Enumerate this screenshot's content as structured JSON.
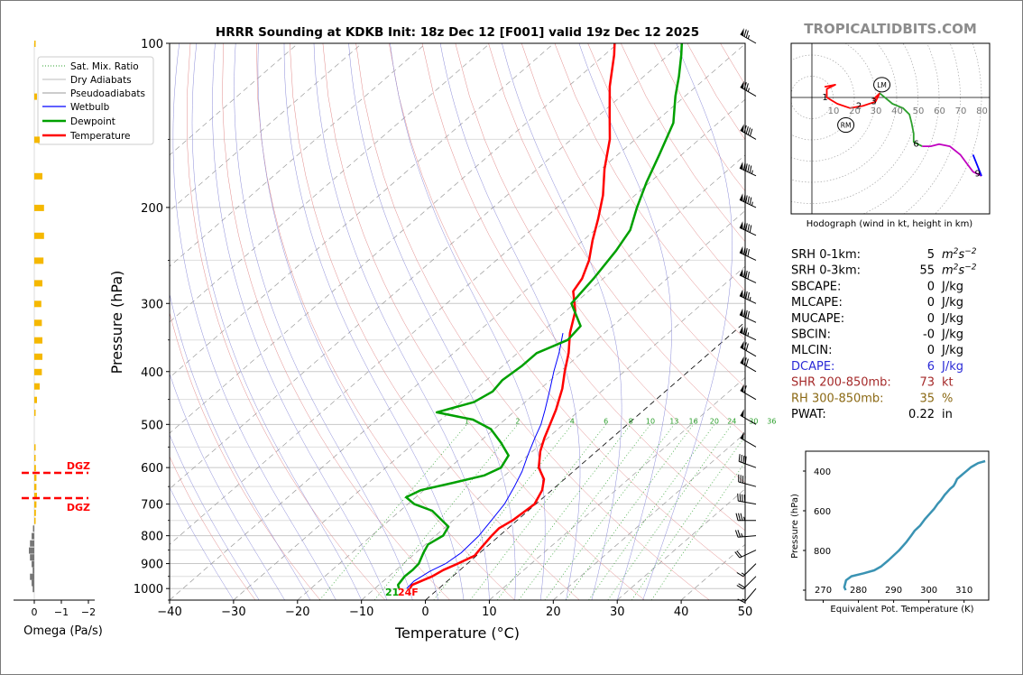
{
  "chart_data": [
    {
      "type": "line",
      "chart": "skewt-sounding",
      "title": "HRRR Sounding at KDKB Init: 18z Dec 12 [F001] valid 19z Dec 12 2025",
      "xlabel": "Temperature (°C)",
      "ylabel": "Pressure (hPa)",
      "xlim": [
        -40,
        50
      ],
      "ylim": [
        1050,
        100
      ],
      "y_scale": "log",
      "x_ticks": [
        -40,
        -30,
        -20,
        -10,
        0,
        10,
        20,
        30,
        40,
        50
      ],
      "x_tick_labels": [
        "−40",
        "−30",
        "−20",
        "−10",
        "0",
        "10",
        "20",
        "30",
        "40",
        "50"
      ],
      "y_ticks": [
        1000,
        900,
        800,
        700,
        600,
        500,
        400,
        300,
        200,
        100
      ],
      "legend": [
        "Sat. Mix. Ratio",
        "Dry Adiabats",
        "Pseudoadiabats",
        "Wetbulb",
        "Dewpoint",
        "Temperature"
      ],
      "legend_position": "upper-left",
      "mixing_ratio_labels": [
        "1",
        "2",
        "4",
        "6",
        "8",
        "10",
        "13",
        "16",
        "20",
        "24",
        "30",
        "36"
      ],
      "mixing_ratio_values": [
        1,
        2,
        4,
        6,
        8,
        10,
        13,
        16,
        20,
        24,
        30,
        36
      ],
      "surface_dewpoint_label": "21",
      "surface_temp_label": "24F",
      "series": [
        {
          "name": "Temperature",
          "color": "#ff0000",
          "points": [
            [
              -4.5,
              1000
            ],
            [
              -4.8,
              985
            ],
            [
              -3.2,
              950
            ],
            [
              -2.6,
              925
            ],
            [
              -1.5,
              900
            ],
            [
              -0.3,
              870
            ],
            [
              -0.7,
              840
            ],
            [
              -1.2,
              800
            ],
            [
              -1.4,
              775
            ],
            [
              -0.7,
              750
            ],
            [
              -0.2,
              700
            ],
            [
              -1.5,
              660
            ],
            [
              -3.2,
              630
            ],
            [
              -6.1,
              600
            ],
            [
              -8.8,
              560
            ],
            [
              -10.5,
              530
            ],
            [
              -12.1,
              500
            ],
            [
              -13.8,
              470
            ],
            [
              -16.6,
              430
            ],
            [
              -19.3,
              400
            ],
            [
              -22.0,
              370
            ],
            [
              -25.4,
              340
            ],
            [
              -28.5,
              310
            ],
            [
              -32.4,
              285
            ],
            [
              -33.3,
              270
            ],
            [
              -35.5,
              250
            ],
            [
              -38.5,
              230
            ],
            [
              -41.5,
              210
            ],
            [
              -45.0,
              190
            ],
            [
              -49.5,
              170
            ],
            [
              -54.0,
              150
            ],
            [
              -58.5,
              135
            ],
            [
              -63.5,
              120
            ],
            [
              -68.5,
              105
            ],
            [
              -70.5,
              100
            ]
          ]
        },
        {
          "name": "Wetbulb",
          "color": "#0000ff",
          "points": [
            [
              -5.0,
              1000
            ],
            [
              -5.2,
              970
            ],
            [
              -4.5,
              930
            ],
            [
              -3.4,
              900
            ],
            [
              -2.9,
              860
            ],
            [
              -3.2,
              800
            ],
            [
              -4.0,
              750
            ],
            [
              -4.9,
              700
            ],
            [
              -6.5,
              650
            ],
            [
              -8.0,
              610
            ],
            [
              -10.0,
              570
            ],
            [
              -12.0,
              530
            ],
            [
              -13.5,
              500
            ],
            [
              -15.5,
              470
            ],
            [
              -18.5,
              430
            ],
            [
              -21.0,
              400
            ],
            [
              -23.5,
              370
            ],
            [
              -26.5,
              340
            ]
          ]
        },
        {
          "name": "Dewpoint",
          "color": "#00a000",
          "points": [
            [
              -6.2,
              1000
            ],
            [
              -7.0,
              985
            ],
            [
              -7.5,
              950
            ],
            [
              -7.4,
              925
            ],
            [
              -7.6,
              900
            ],
            [
              -8.8,
              860
            ],
            [
              -9.6,
              830
            ],
            [
              -8.8,
              800
            ],
            [
              -9.6,
              770
            ],
            [
              -15.0,
              720
            ],
            [
              -19.0,
              700
            ],
            [
              -21.5,
              680
            ],
            [
              -20.5,
              660
            ],
            [
              -16.8,
              640
            ],
            [
              -13.2,
              620
            ],
            [
              -12.0,
              600
            ],
            [
              -13.0,
              570
            ],
            [
              -16.5,
              540
            ],
            [
              -20.5,
              510
            ],
            [
              -25.0,
              490
            ],
            [
              -32.0,
              475
            ],
            [
              -28.0,
              455
            ],
            [
              -27.0,
              435
            ],
            [
              -27.5,
              415
            ],
            [
              -27.0,
              390
            ],
            [
              -27.0,
              370
            ],
            [
              -24.5,
              350
            ],
            [
              -25.0,
              330
            ],
            [
              -30.5,
              300
            ],
            [
              -31.5,
              270
            ],
            [
              -33.0,
              240
            ],
            [
              -34.5,
              220
            ],
            [
              -37.5,
              200
            ],
            [
              -40.5,
              180
            ],
            [
              -43.5,
              160
            ],
            [
              -47.0,
              140
            ],
            [
              -51.5,
              125
            ],
            [
              -54.5,
              115
            ],
            [
              -58.0,
              105
            ],
            [
              -60.0,
              100
            ]
          ]
        }
      ]
    },
    {
      "type": "bar",
      "chart": "omega-profile",
      "xlabel": "Omega (Pa/s)",
      "x_ticks": [
        "0",
        "−1",
        "−2"
      ],
      "dgz_label_top": "DGZ",
      "dgz_label_bottom": "DGZ",
      "dgz_pressures": [
        615,
        685
      ],
      "bars": [
        {
          "p": 100,
          "omega": -0.02
        },
        {
          "p": 125,
          "omega": -0.05
        },
        {
          "p": 150,
          "omega": -0.1
        },
        {
          "p": 175,
          "omega": -0.15
        },
        {
          "p": 200,
          "omega": -0.18
        },
        {
          "p": 225,
          "omega": -0.18
        },
        {
          "p": 250,
          "omega": -0.17
        },
        {
          "p": 275,
          "omega": -0.15
        },
        {
          "p": 300,
          "omega": -0.13
        },
        {
          "p": 325,
          "omega": -0.14
        },
        {
          "p": 350,
          "omega": -0.15
        },
        {
          "p": 375,
          "omega": -0.15
        },
        {
          "p": 400,
          "omega": -0.14
        },
        {
          "p": 425,
          "omega": -0.1
        },
        {
          "p": 450,
          "omega": -0.05
        },
        {
          "p": 475,
          "omega": -0.02
        },
        {
          "p": 550,
          "omega": -0.02
        },
        {
          "p": 575,
          "omega": -0.02
        },
        {
          "p": 600,
          "omega": -0.03
        },
        {
          "p": 625,
          "omega": -0.04
        },
        {
          "p": 650,
          "omega": -0.04
        },
        {
          "p": 675,
          "omega": -0.05
        },
        {
          "p": 700,
          "omega": -0.04
        },
        {
          "p": 725,
          "omega": -0.03
        },
        {
          "p": 750,
          "omega": -0.02
        },
        {
          "p": 775,
          "omega": 0.02
        },
        {
          "p": 800,
          "omega": 0.05
        },
        {
          "p": 825,
          "omega": 0.08
        },
        {
          "p": 850,
          "omega": 0.1
        },
        {
          "p": 875,
          "omega": 0.08
        },
        {
          "p": 900,
          "omega": 0.05
        },
        {
          "p": 925,
          "omega": 0.03
        },
        {
          "p": 950,
          "omega": 0.08
        },
        {
          "p": 975,
          "omega": 0.05
        },
        {
          "p": 1000,
          "omega": 0.03
        }
      ]
    },
    {
      "type": "line",
      "chart": "hodograph",
      "caption": "Hodograph (wind in kt, height in km)",
      "ring_labels": [
        "10",
        "20",
        "30",
        "40",
        "50",
        "60",
        "70",
        "80"
      ],
      "ring_values": [
        10,
        20,
        30,
        40,
        50,
        60,
        70,
        80
      ],
      "height_labels": [
        "1",
        "2",
        "3",
        "6",
        "9"
      ],
      "markers": [
        "LM",
        "RM"
      ],
      "segments": [
        {
          "color": "#ff0000",
          "points": [
            [
              6,
              5
            ],
            [
              11,
              6
            ],
            [
              7,
              4
            ],
            [
              7,
              0
            ],
            [
              12,
              -3
            ],
            [
              18,
              -5
            ],
            [
              24,
              -4
            ],
            [
              30,
              -2
            ],
            [
              32,
              2
            ],
            [
              29,
              -1
            ]
          ]
        },
        {
          "color": "#2ca02c",
          "points": [
            [
              32,
              2
            ],
            [
              38,
              -3
            ],
            [
              43,
              -5
            ],
            [
              46,
              -8
            ],
            [
              47,
              -12
            ],
            [
              48,
              -17
            ],
            [
              48,
              -21
            ],
            [
              50,
              -22
            ],
            [
              52,
              -23
            ]
          ]
        },
        {
          "color": "#c000c0",
          "points": [
            [
              52,
              -23
            ],
            [
              56,
              -23
            ],
            [
              60,
              -22
            ],
            [
              65,
              -23
            ],
            [
              70,
              -27
            ],
            [
              73,
              -31
            ],
            [
              76,
              -35
            ],
            [
              80,
              -37
            ]
          ]
        },
        {
          "color": "#0000ff",
          "points": [
            [
              80,
              -37
            ],
            [
              76,
              -27
            ]
          ]
        }
      ],
      "height_points": [
        [
          7,
          0
        ],
        [
          23,
          -4
        ],
        [
          30,
          -2
        ],
        [
          50,
          -22
        ],
        [
          79,
          -36
        ]
      ],
      "lm": [
        33,
        6
      ],
      "rm": [
        16,
        -13
      ]
    },
    {
      "type": "line",
      "chart": "theta-e-profile",
      "xlabel": "Equivalent Pot. Temperature (K)",
      "ylabel": "Pressure (hPa)",
      "x_ticks": [
        270,
        280,
        290,
        300,
        310
      ],
      "y_ticks": [
        400,
        600,
        800
      ],
      "xlim": [
        265,
        317
      ],
      "ylim": [
        1050,
        300
      ],
      "points": [
        [
          276.4,
          1000
        ],
        [
          276.0,
          985
        ],
        [
          276.5,
          950
        ],
        [
          278.0,
          930
        ],
        [
          281.5,
          915
        ],
        [
          284.5,
          900
        ],
        [
          286.5,
          880
        ],
        [
          288.5,
          850
        ],
        [
          291.5,
          800
        ],
        [
          293.5,
          760
        ],
        [
          295.0,
          725
        ],
        [
          296.0,
          700
        ],
        [
          297.5,
          675
        ],
        [
          299.0,
          640
        ],
        [
          300.5,
          610
        ],
        [
          301.5,
          590
        ],
        [
          302.5,
          565
        ],
        [
          303.5,
          545
        ],
        [
          304.5,
          520
        ],
        [
          305.0,
          510
        ],
        [
          306.0,
          490
        ],
        [
          307.0,
          475
        ],
        [
          307.5,
          460
        ],
        [
          308.0,
          440
        ],
        [
          309.0,
          425
        ],
        [
          310.0,
          410
        ],
        [
          311.0,
          395
        ],
        [
          312.0,
          380
        ],
        [
          313.0,
          370
        ],
        [
          314.0,
          360
        ],
        [
          315.0,
          355
        ],
        [
          316.0,
          350
        ]
      ]
    }
  ],
  "watermark": "TROPICALTIDBITS.COM",
  "indices": [
    {
      "label": "SRH 0-1km:",
      "value": "5",
      "unit": "m2s-2",
      "color": "#000000"
    },
    {
      "label": "SRH 0-3km:",
      "value": "55",
      "unit": "m2s-2",
      "color": "#000000"
    },
    {
      "label": "SBCAPE:",
      "value": "0",
      "unit": "J/kg",
      "color": "#000000"
    },
    {
      "label": "MLCAPE:",
      "value": "0",
      "unit": "J/kg",
      "color": "#000000"
    },
    {
      "label": "MUCAPE:",
      "value": "0",
      "unit": "J/kg",
      "color": "#000000"
    },
    {
      "label": "SBCIN:",
      "value": "-0",
      "unit": "J/kg",
      "color": "#000000"
    },
    {
      "label": "MLCIN:",
      "value": "0",
      "unit": "J/kg",
      "color": "#000000"
    },
    {
      "label": "DCAPE:",
      "value": "6",
      "unit": "J/kg",
      "color": "#2a2ad6"
    },
    {
      "label": "SHR 200-850mb:",
      "value": "73",
      "unit": "kt",
      "color": "#a52a2a"
    },
    {
      "label": "RH 300-850mb:",
      "value": "35",
      "unit": "%",
      "color": "#8b6914"
    },
    {
      "label": "PWAT:",
      "value": "0.22",
      "unit": "in",
      "color": "#000000"
    }
  ],
  "wind_barbs": [
    {
      "p": 100,
      "dir": 300,
      "kt": 75
    },
    {
      "p": 125,
      "dir": 300,
      "kt": 75
    },
    {
      "p": 150,
      "dir": 300,
      "kt": 90
    },
    {
      "p": 175,
      "dir": 295,
      "kt": 95
    },
    {
      "p": 200,
      "dir": 295,
      "kt": 95
    },
    {
      "p": 225,
      "dir": 295,
      "kt": 90
    },
    {
      "p": 250,
      "dir": 295,
      "kt": 80
    },
    {
      "p": 275,
      "dir": 295,
      "kt": 80
    },
    {
      "p": 300,
      "dir": 295,
      "kt": 85
    },
    {
      "p": 325,
      "dir": 295,
      "kt": 80
    },
    {
      "p": 350,
      "dir": 295,
      "kt": 75
    },
    {
      "p": 375,
      "dir": 300,
      "kt": 70
    },
    {
      "p": 400,
      "dir": 300,
      "kt": 70
    },
    {
      "p": 450,
      "dir": 300,
      "kt": 60
    },
    {
      "p": 500,
      "dir": 300,
      "kt": 50
    },
    {
      "p": 550,
      "dir": 300,
      "kt": 50
    },
    {
      "p": 600,
      "dir": 290,
      "kt": 40
    },
    {
      "p": 650,
      "dir": 285,
      "kt": 40
    },
    {
      "p": 700,
      "dir": 280,
      "kt": 40
    },
    {
      "p": 750,
      "dir": 270,
      "kt": 35
    },
    {
      "p": 800,
      "dir": 265,
      "kt": 25
    },
    {
      "p": 850,
      "dir": 245,
      "kt": 20
    },
    {
      "p": 900,
      "dir": 225,
      "kt": 15
    },
    {
      "p": 950,
      "dir": 225,
      "kt": 20
    },
    {
      "p": 1000,
      "dir": 220,
      "kt": 15
    }
  ]
}
